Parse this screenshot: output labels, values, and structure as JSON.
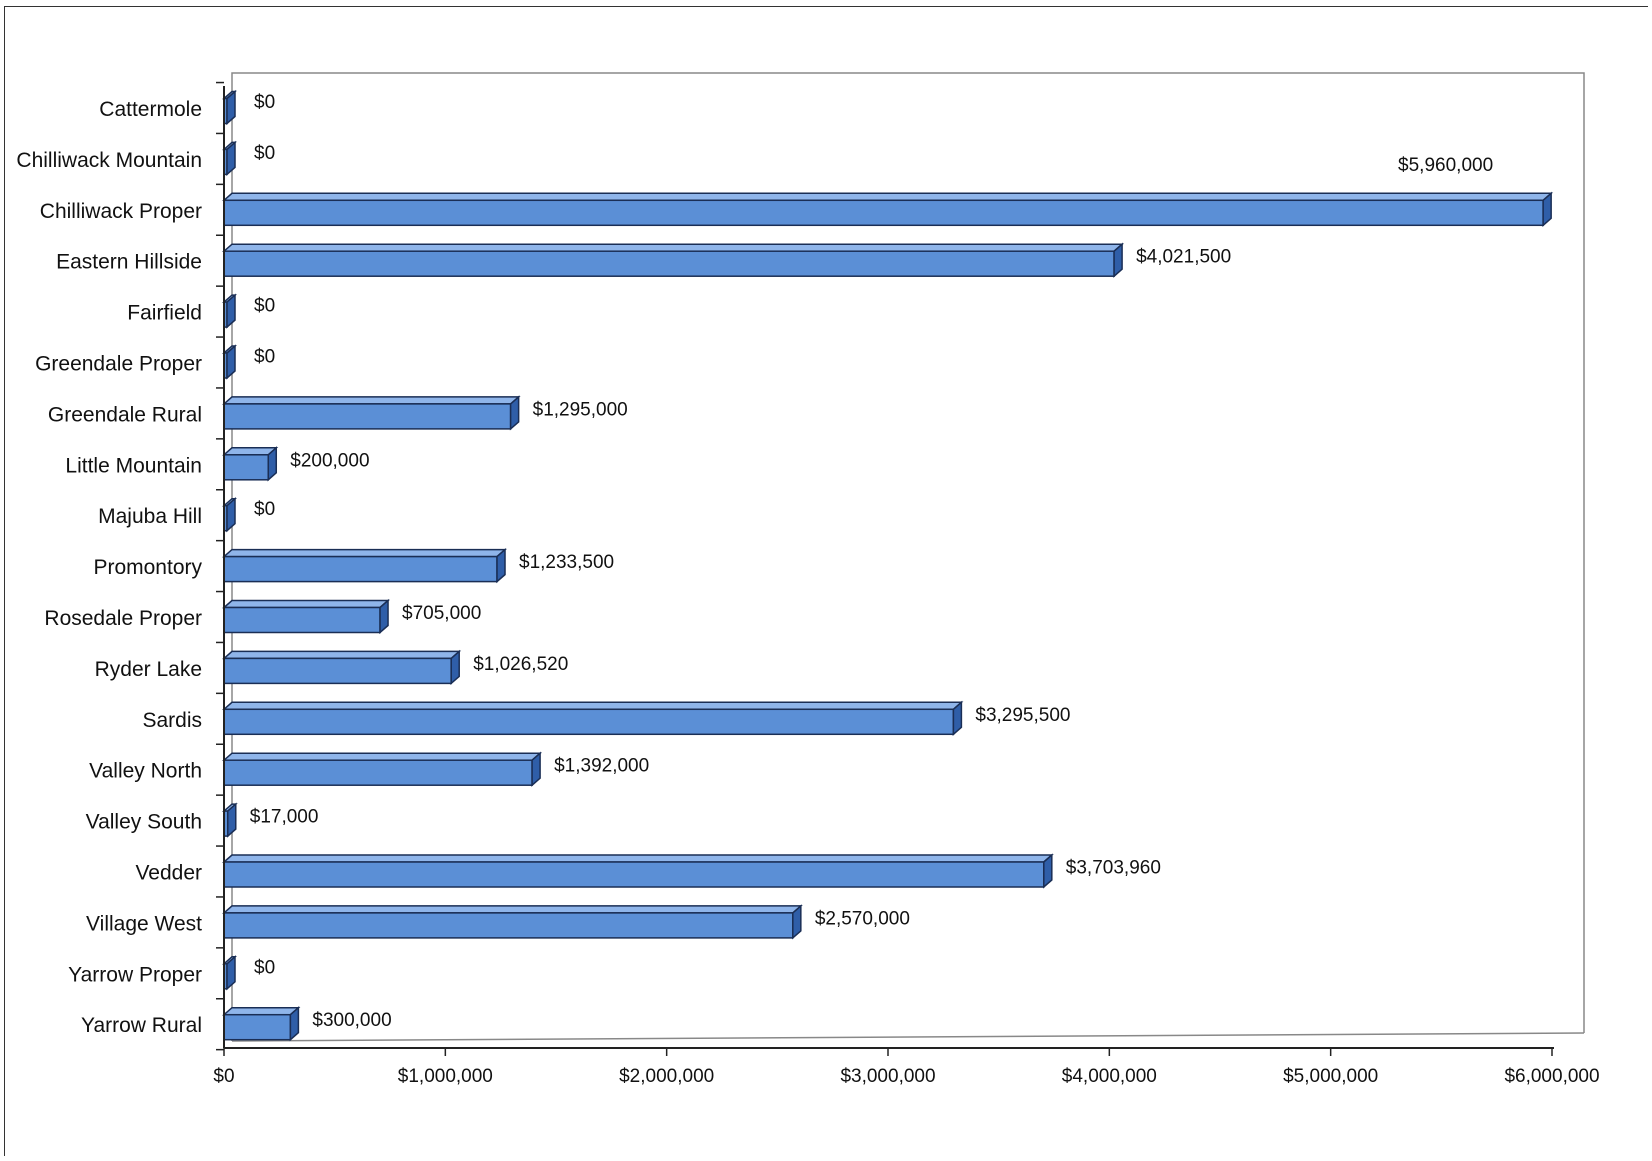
{
  "chart_data": {
    "type": "bar",
    "orientation": "horizontal",
    "categories": [
      "Cattermole",
      "Chilliwack Mountain",
      "Chilliwack Proper",
      "Eastern Hillside",
      "Fairfield",
      "Greendale Proper",
      "Greendale Rural",
      "Little Mountain",
      "Majuba Hill",
      "Promontory",
      "Rosedale Proper",
      "Ryder Lake",
      "Sardis",
      "Valley North",
      "Valley South",
      "Vedder",
      "Village West",
      "Yarrow Proper",
      "Yarrow Rural"
    ],
    "values": [
      0,
      0,
      5960000,
      4021500,
      0,
      0,
      1295000,
      200000,
      0,
      1233500,
      705000,
      1026520,
      3295500,
      1392000,
      17000,
      3703960,
      2570000,
      0,
      300000
    ],
    "value_labels": [
      "$0",
      "$0",
      "$5,960,000",
      "$4,021,500",
      "$0",
      "$0",
      "$1,295,000",
      "$200,000",
      "$0",
      "$1,233,500",
      "$705,000",
      "$1,026,520",
      "$3,295,500",
      "$1,392,000",
      "$17,000",
      "$3,703,960",
      "$2,570,000",
      "$0",
      "$300,000"
    ],
    "x_ticks": [
      0,
      1000000,
      2000000,
      3000000,
      4000000,
      5000000,
      6000000
    ],
    "x_tick_labels": [
      "$0",
      "$1,000,000",
      "$2,000,000",
      "$3,000,000",
      "$4,000,000",
      "$5,000,000",
      "$6,000,000"
    ],
    "xlim": [
      0,
      6000000
    ],
    "title": "",
    "xlabel": "",
    "ylabel": "",
    "grid": false,
    "legend": "none",
    "style": "3d",
    "colors": {
      "bar_face": "#5b8fd6",
      "bar_top": "#8fb5ea",
      "bar_side": "#2f5ea8",
      "bar_outline": "#1a2e55",
      "axis": "#222222",
      "plot_frame": "#888888"
    }
  }
}
